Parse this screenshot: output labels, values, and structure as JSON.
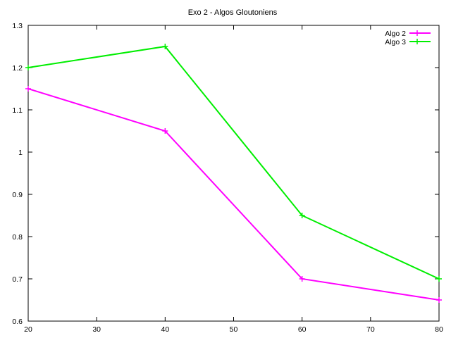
{
  "chart_data": {
    "type": "line",
    "title": "Exo 2 - Algos Gloutoniens",
    "xlabel": "",
    "ylabel": "",
    "x": [
      20,
      40,
      60,
      80
    ],
    "xlim": [
      20,
      80
    ],
    "ylim": [
      0.6,
      1.3
    ],
    "xticks": [
      20,
      30,
      40,
      50,
      60,
      70,
      80
    ],
    "yticks": [
      0.6,
      0.7,
      0.8,
      0.9,
      1.0,
      1.1,
      1.2,
      1.3
    ],
    "ytick_labels": [
      "0.6",
      "0.7",
      "0.8",
      "0.9",
      "1",
      "1.1",
      "1.2",
      "1.3"
    ],
    "grid": false,
    "legend_position": "top-right",
    "series": [
      {
        "name": "Algo 2",
        "color": "#ff00ff",
        "marker": "plus",
        "values": [
          1.15,
          1.05,
          0.7,
          0.65
        ]
      },
      {
        "name": "Algo 3",
        "color": "#00ee00",
        "marker": "plus",
        "values": [
          1.2,
          1.25,
          0.85,
          0.7
        ]
      }
    ]
  }
}
